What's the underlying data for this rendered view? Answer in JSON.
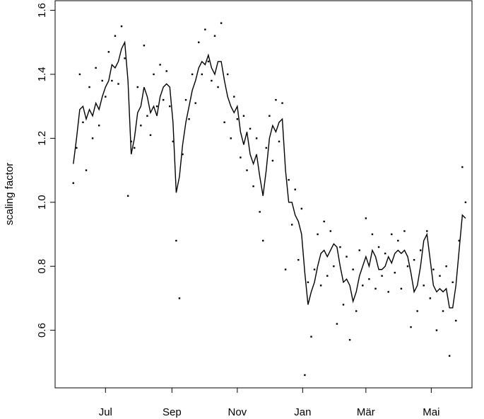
{
  "chart_data": {
    "type": "line",
    "ylabel": "scaling factor",
    "x": [
      -30,
      -27,
      -24,
      -21,
      -18,
      -15,
      -12,
      -9,
      -6,
      -3,
      0,
      3,
      6,
      9,
      12,
      15,
      18,
      21,
      24,
      27,
      30,
      33,
      36,
      39,
      42,
      45,
      48,
      51,
      54,
      57,
      60,
      63,
      66,
      69,
      72,
      75,
      78,
      81,
      84,
      87,
      90,
      93,
      96,
      99,
      102,
      105,
      108,
      111,
      114,
      117,
      120,
      123,
      126,
      129,
      132,
      135,
      138,
      141,
      144,
      147,
      150,
      153,
      156,
      159,
      162,
      165,
      168,
      171,
      174,
      177,
      180,
      183,
      186,
      189,
      192,
      195,
      198,
      201,
      204,
      207,
      210,
      213,
      216,
      219,
      222,
      225,
      228,
      231,
      234,
      237,
      240,
      243,
      246,
      249,
      252,
      255,
      258,
      261,
      264,
      267,
      270,
      273,
      276,
      279,
      282,
      285,
      288,
      291,
      294,
      297,
      300,
      303,
      306,
      309,
      312,
      315,
      318,
      321,
      324,
      327,
      330,
      333,
      336
    ],
    "series": [
      {
        "style": "points",
        "color": "#000000",
        "values": [
          1.06,
          1.17,
          1.4,
          1.25,
          1.1,
          1.36,
          1.2,
          1.42,
          1.24,
          1.38,
          1.33,
          1.47,
          1.38,
          1.52,
          1.37,
          1.55,
          1.45,
          1.02,
          1.19,
          1.17,
          1.36,
          1.24,
          1.49,
          1.27,
          1.21,
          1.4,
          1.3,
          1.43,
          1.32,
          1.41,
          1.3,
          1.19,
          0.88,
          0.7,
          1.15,
          1.32,
          1.26,
          1.4,
          1.31,
          1.5,
          1.4,
          1.54,
          1.44,
          1.38,
          1.52,
          1.36,
          1.56,
          1.25,
          1.4,
          1.2,
          1.33,
          1.26,
          1.14,
          1.27,
          1.1,
          1.23,
          1.05,
          1.2,
          0.97,
          0.88,
          1.17,
          1.27,
          1.13,
          1.32,
          1.19,
          1.31,
          0.79,
          1.07,
          0.93,
          1.04,
          0.82,
          0.98,
          0.46,
          0.75,
          0.58,
          0.79,
          0.9,
          0.74,
          0.94,
          0.77,
          0.91,
          0.8,
          0.62,
          0.86,
          0.68,
          0.83,
          0.57,
          0.79,
          0.66,
          0.85,
          0.74,
          0.95,
          0.76,
          0.9,
          0.73,
          0.86,
          0.77,
          0.84,
          0.72,
          0.9,
          0.78,
          0.88,
          0.73,
          0.91,
          0.8,
          0.61,
          0.82,
          0.66,
          0.85,
          0.74,
          0.91,
          0.7,
          0.79,
          0.6,
          0.77,
          0.66,
          0.8,
          0.52,
          0.75,
          0.63,
          0.88,
          1.11,
          1.0
        ]
      },
      {
        "style": "line",
        "color": "#000000",
        "values": [
          1.12,
          1.2,
          1.29,
          1.3,
          1.26,
          1.29,
          1.27,
          1.31,
          1.29,
          1.33,
          1.36,
          1.38,
          1.43,
          1.42,
          1.44,
          1.48,
          1.5,
          1.38,
          1.15,
          1.2,
          1.28,
          1.3,
          1.36,
          1.33,
          1.28,
          1.3,
          1.27,
          1.33,
          1.36,
          1.37,
          1.36,
          1.25,
          1.03,
          1.08,
          1.18,
          1.25,
          1.3,
          1.35,
          1.38,
          1.42,
          1.44,
          1.43,
          1.46,
          1.42,
          1.4,
          1.44,
          1.44,
          1.38,
          1.33,
          1.3,
          1.28,
          1.3,
          1.22,
          1.18,
          1.22,
          1.15,
          1.12,
          1.15,
          1.08,
          1.02,
          1.1,
          1.2,
          1.24,
          1.22,
          1.25,
          1.26,
          1.1,
          1.0,
          1.0,
          0.96,
          0.94,
          0.9,
          0.78,
          0.68,
          0.72,
          0.75,
          0.8,
          0.84,
          0.85,
          0.83,
          0.85,
          0.87,
          0.86,
          0.8,
          0.75,
          0.76,
          0.74,
          0.69,
          0.72,
          0.77,
          0.8,
          0.83,
          0.8,
          0.85,
          0.83,
          0.79,
          0.79,
          0.8,
          0.83,
          0.81,
          0.84,
          0.85,
          0.84,
          0.85,
          0.83,
          0.78,
          0.72,
          0.74,
          0.8,
          0.88,
          0.9,
          0.82,
          0.74,
          0.72,
          0.73,
          0.72,
          0.73,
          0.67,
          0.67,
          0.74,
          0.85,
          0.96,
          0.95
        ]
      }
    ],
    "xlim": [
      -47,
      342
    ],
    "xticks": [
      {
        "value": 0,
        "label": "Jul"
      },
      {
        "value": 62,
        "label": "Sep"
      },
      {
        "value": 123,
        "label": "Nov"
      },
      {
        "value": 184,
        "label": "Jan"
      },
      {
        "value": 243,
        "label": "Mär"
      },
      {
        "value": 304,
        "label": "Mai"
      }
    ],
    "ylim": [
      0.42,
      1.63
    ],
    "yticks": [
      0.6,
      0.8,
      {
        "value": 1,
        "label": "1.0"
      },
      1.2,
      1.4,
      1.6
    ]
  }
}
